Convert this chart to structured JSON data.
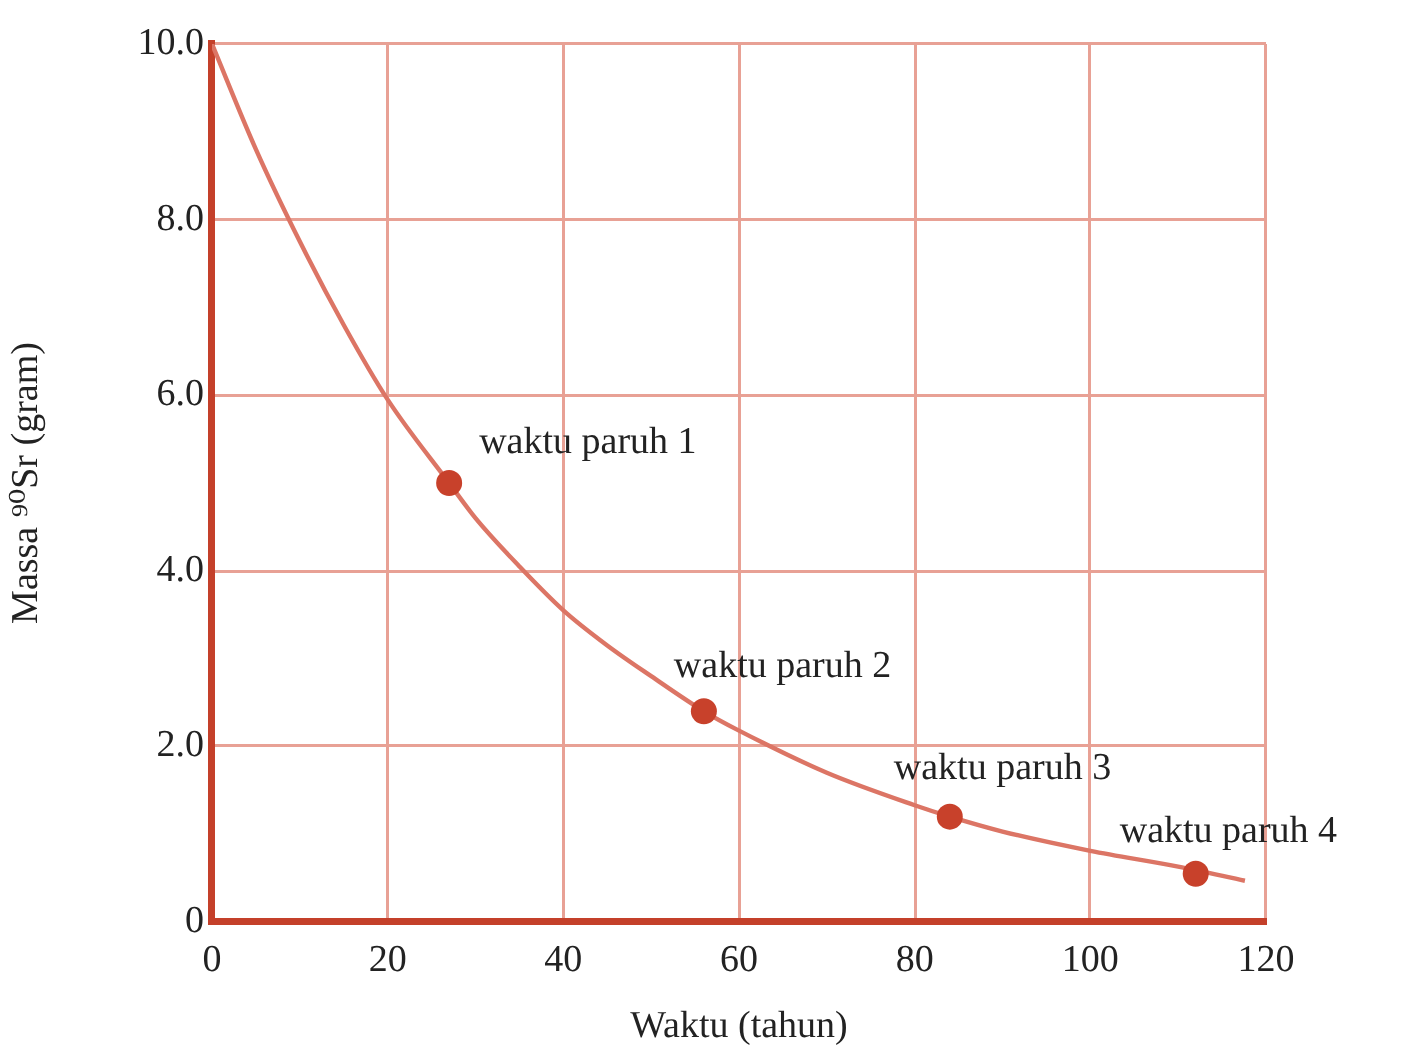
{
  "chart_data": {
    "type": "line",
    "xlabel": "Waktu (tahun)",
    "ylabel": "Massa ⁹⁰Sr (gram)",
    "xlim": [
      0,
      120
    ],
    "xticks": [
      0,
      20,
      40,
      60,
      80,
      100,
      120
    ],
    "ylim": [
      0,
      10
    ],
    "yticks": [
      0,
      {
        "value": 2,
        "label": "2.0"
      },
      {
        "value": 4,
        "label": "4.0"
      },
      {
        "value": 6,
        "label": "6.0"
      },
      {
        "value": 8,
        "label": "8.0"
      },
      {
        "value": 10,
        "label": "10.0"
      }
    ],
    "grid": true,
    "legend": false,
    "series": [
      {
        "color": "#dc7565",
        "marker": "none",
        "x": [
          0,
          5,
          10,
          15,
          20,
          27,
          30,
          35,
          40,
          45,
          50,
          56,
          60,
          70,
          80,
          84,
          90,
          100,
          110,
          117.6
        ],
        "values": [
          10.0,
          8.8,
          7.75,
          6.8,
          5.95,
          5.0,
          4.6,
          4.05,
          3.55,
          3.15,
          2.8,
          2.4,
          2.18,
          1.7,
          1.33,
          1.2,
          1.03,
          0.81,
          0.63,
          0.47
        ]
      },
      {
        "type": "scatter",
        "color": "#c8412b",
        "marker": "circle",
        "x": [
          27,
          56,
          84,
          112
        ],
        "values": [
          5.0,
          2.4,
          1.2,
          0.55
        ]
      }
    ],
    "annotations": [
      {
        "text": "waktu paruh 1",
        "x": 27,
        "y": 5.0
      },
      {
        "text": "waktu paruh 2",
        "x": 56,
        "y": 2.4
      },
      {
        "text": "waktu paruh 3",
        "x": 84,
        "y": 1.2
      },
      {
        "text": "waktu paruh 4",
        "x": 112,
        "y": 0.55
      }
    ]
  }
}
